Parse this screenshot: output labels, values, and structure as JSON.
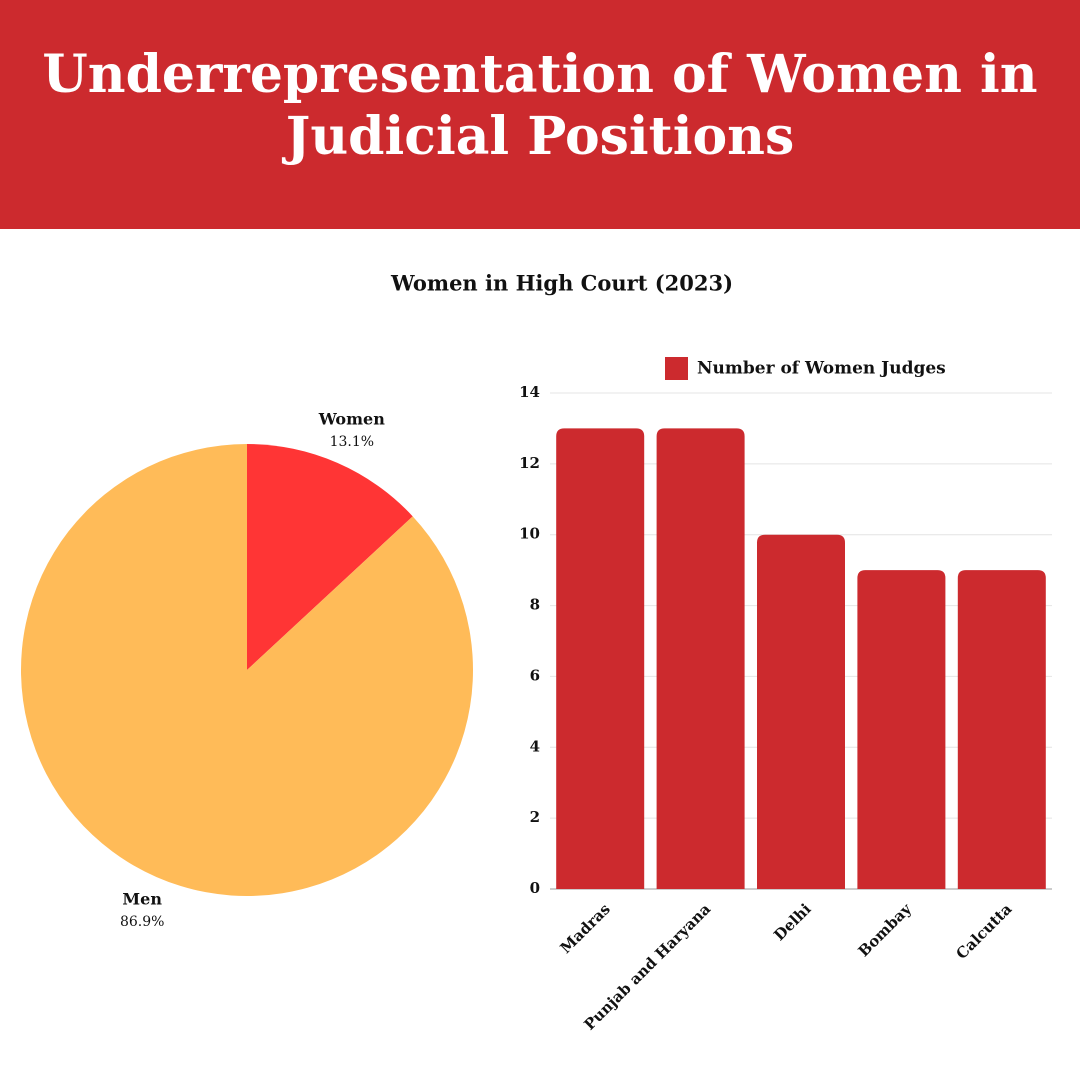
{
  "header": {
    "title": "Underrepresentation of Women in Judicial Positions",
    "subtitle": "Women in High Court (2023)"
  },
  "chart_data": [
    {
      "type": "pie",
      "categories": [
        "Women",
        "Men"
      ],
      "values": [
        13.1,
        86.9
      ],
      "value_labels": [
        "13.1%",
        "86.9%"
      ],
      "colors": [
        "#ff3535",
        "#ffbb58"
      ]
    },
    {
      "type": "bar",
      "categories": [
        "Madras",
        "Punjab and Haryana",
        "Delhi",
        "Bombay",
        "Calcutta"
      ],
      "series": [
        {
          "name": "Number of Women Judges",
          "color": "#cc2a2e",
          "values": [
            13,
            13,
            10,
            9,
            9
          ]
        }
      ],
      "ylim": [
        0,
        14
      ],
      "yticks": [
        0,
        2,
        4,
        6,
        8,
        10,
        12,
        14
      ],
      "grid": true,
      "legend": "top"
    }
  ]
}
